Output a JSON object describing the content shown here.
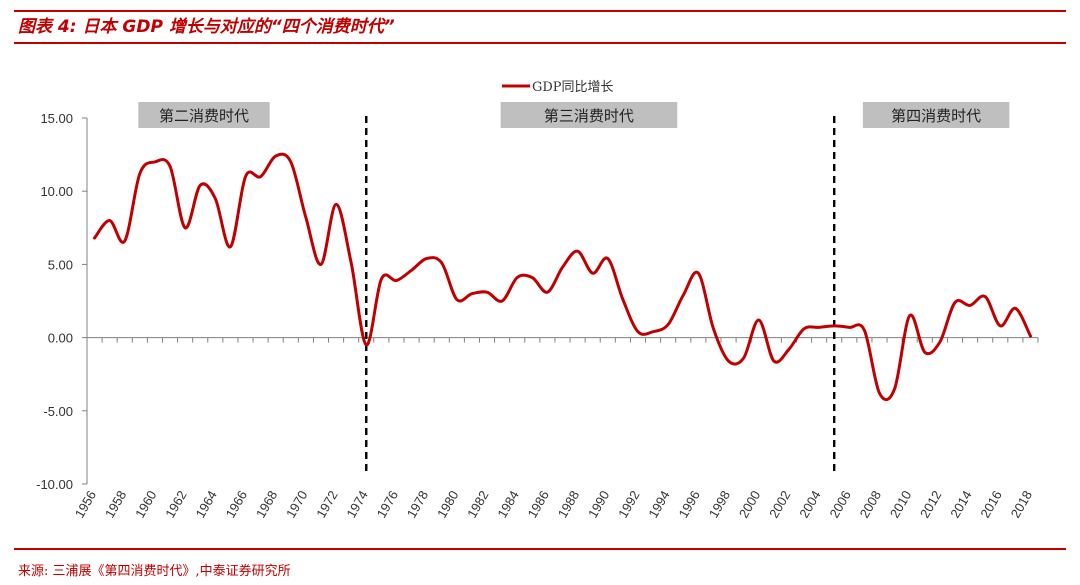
{
  "figure_title": "图表 4:  日本 GDP 增长与对应的“四个消费时代”",
  "source": "来源:  三浦展《第四消费时代》,中泰证券研究所",
  "chart_data": {
    "type": "line",
    "title": "",
    "xlabel": "",
    "ylabel": "",
    "ylim": [
      -10,
      15
    ],
    "yticks": [
      "15.00",
      "10.00",
      "5.00",
      "0.00",
      "-5.00",
      "-10.00"
    ],
    "x": [
      1956,
      1957,
      1958,
      1959,
      1960,
      1961,
      1962,
      1963,
      1964,
      1965,
      1966,
      1967,
      1968,
      1969,
      1970,
      1971,
      1972,
      1973,
      1974,
      1975,
      1976,
      1977,
      1978,
      1979,
      1980,
      1981,
      1982,
      1983,
      1984,
      1985,
      1986,
      1987,
      1988,
      1989,
      1990,
      1991,
      1992,
      1993,
      1994,
      1995,
      1996,
      1997,
      1998,
      1999,
      2000,
      2001,
      2002,
      2003,
      2004,
      2005,
      2006,
      2007,
      2008,
      2009,
      2010,
      2011,
      2012,
      2013,
      2014,
      2015,
      2016,
      2017,
      2018
    ],
    "xticks": [
      1956,
      1958,
      1960,
      1962,
      1964,
      1966,
      1968,
      1970,
      1972,
      1974,
      1976,
      1978,
      1980,
      1982,
      1984,
      1986,
      1988,
      1990,
      1992,
      1994,
      1996,
      1998,
      2000,
      2002,
      2004,
      2006,
      2008,
      2010,
      2012,
      2014,
      2016,
      2018
    ],
    "series": [
      {
        "name": "GDP同比增长",
        "color": "#c00000",
        "values": [
          6.8,
          8.0,
          6.6,
          11.2,
          12.0,
          11.7,
          7.5,
          10.4,
          9.5,
          6.2,
          11.0,
          11.0,
          12.4,
          12.0,
          8.2,
          5.0,
          9.1,
          5.1,
          -0.5,
          4.0,
          3.9,
          4.6,
          5.4,
          5.1,
          2.6,
          3.0,
          3.1,
          2.5,
          4.1,
          4.1,
          3.1,
          4.8,
          5.9,
          4.4,
          5.4,
          2.6,
          0.4,
          0.4,
          0.9,
          2.9,
          4.4,
          0.6,
          -1.6,
          -1.4,
          1.2,
          -1.6,
          -0.8,
          0.6,
          0.7,
          0.8,
          0.7,
          0.5,
          -3.8,
          -3.5,
          1.5,
          -1.0,
          -0.3,
          2.4,
          2.2,
          2.8,
          0.8,
          2.0,
          0.1
        ]
      }
    ],
    "legend_position": "top",
    "eras": [
      {
        "label": "第二消费时代",
        "start": 1959,
        "end": 1967
      },
      {
        "label": "第三消费时代",
        "start": 1983,
        "end": 1994
      },
      {
        "label": "第四消费时代",
        "start": 2007,
        "end": 2016
      }
    ],
    "era_dividers": [
      1974,
      2005
    ],
    "colors": {
      "accent": "#c00000",
      "era_box": "#bfbfbf",
      "axis": "#808080",
      "divider": "#000000"
    }
  }
}
